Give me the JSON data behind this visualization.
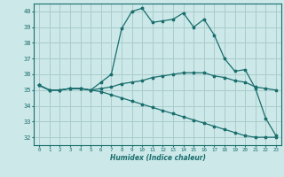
{
  "xlabel": "Humidex (Indice chaleur)",
  "background_color": "#cce8e8",
  "grid_color": "#aacccc",
  "line_color": "#1a6e6e",
  "ylim": [
    31.5,
    40.5
  ],
  "xlim": [
    -0.5,
    23.5
  ],
  "yticks": [
    32,
    33,
    34,
    35,
    36,
    37,
    38,
    39,
    40
  ],
  "xticks": [
    0,
    1,
    2,
    3,
    4,
    5,
    6,
    7,
    8,
    9,
    10,
    11,
    12,
    13,
    14,
    15,
    16,
    17,
    18,
    19,
    20,
    21,
    22,
    23
  ],
  "series": [
    [
      35.3,
      35.0,
      35.0,
      35.1,
      35.1,
      35.0,
      35.5,
      36.0,
      38.9,
      40.0,
      40.2,
      39.3,
      39.4,
      39.5,
      39.9,
      39.0,
      39.5,
      38.5,
      37.0,
      36.2,
      36.3,
      35.1,
      33.2,
      32.1
    ],
    [
      35.3,
      35.0,
      35.0,
      35.1,
      35.1,
      35.0,
      35.1,
      35.2,
      35.4,
      35.5,
      35.6,
      35.8,
      35.9,
      36.0,
      36.1,
      36.1,
      36.1,
      35.9,
      35.8,
      35.6,
      35.5,
      35.2,
      35.1,
      35.0
    ],
    [
      35.3,
      35.0,
      35.0,
      35.1,
      35.1,
      35.0,
      34.9,
      34.7,
      34.5,
      34.3,
      34.1,
      33.9,
      33.7,
      33.5,
      33.3,
      33.1,
      32.9,
      32.7,
      32.5,
      32.3,
      32.1,
      32.0,
      32.0,
      32.0
    ]
  ]
}
